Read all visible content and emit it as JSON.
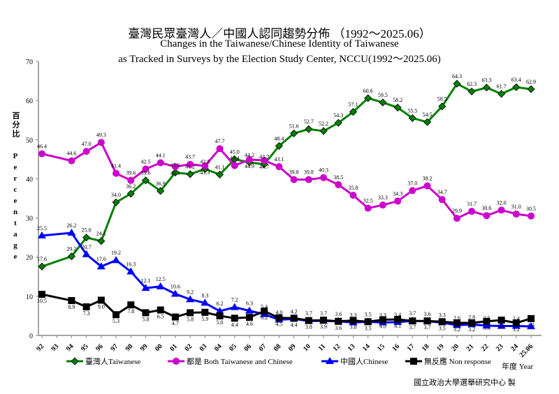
{
  "chart_data": {
    "type": "line",
    "title": "臺灣民眾臺灣人／中國人認同趨勢分佈 （1992～2025.06）",
    "subtitle_line1": "Changes in the Taiwanese/Chinese Identity of Taiwanese",
    "subtitle_line2": "as Tracked in Surveys by the Election Study Center, NCCU(1992～2025.06)",
    "ylabel_zh": "百分比",
    "ylabel_en": "Percentage",
    "xlabel": "年度 Year",
    "credit": "國立政治大學選舉研究中心 製",
    "ylim": [
      0,
      70
    ],
    "yticks": [
      0,
      10,
      20,
      30,
      40,
      50,
      60,
      70
    ],
    "grid": false,
    "legend_placement": "bottom",
    "categories": [
      "92",
      "93",
      "94",
      "95",
      "96",
      "97",
      "98",
      "99",
      "00",
      "01",
      "02",
      "03",
      "04",
      "05",
      "06",
      "07",
      "08",
      "09",
      "10",
      "11",
      "12",
      "13",
      "14",
      "15",
      "16",
      "17",
      "18",
      "19",
      "20",
      "21",
      "22",
      "23",
      "24",
      "25.06"
    ],
    "series": [
      {
        "name": "臺灣人Taiwanese",
        "color": "#008000",
        "marker": "diamond",
        "values": [
          17.6,
          null,
          20.2,
          25.0,
          24.1,
          34.0,
          36.2,
          39.6,
          36.9,
          41.6,
          41.2,
          42.5,
          41.1,
          45.0,
          44.2,
          43.7,
          48.4,
          51.6,
          52.7,
          52.2,
          54.3,
          57.1,
          60.6,
          59.5,
          58.2,
          55.5,
          54.5,
          58.5,
          64.3,
          62.3,
          63.3,
          61.7,
          63.4,
          62.9
        ]
      },
      {
        "name": "都是 Both Taiwanese and Chinese",
        "color": "#cc00cc",
        "marker": "circle",
        "values": [
          46.4,
          null,
          44.6,
          47.0,
          49.3,
          41.4,
          39.6,
          42.5,
          44.1,
          43.1,
          43.7,
          43.3,
          47.7,
          43.4,
          44.9,
          44.7,
          43.1,
          39.8,
          39.8,
          40.3,
          38.5,
          35.8,
          32.5,
          33.3,
          34.3,
          37.0,
          38.2,
          34.7,
          29.9,
          31.7,
          30.6,
          32.0,
          31.0,
          30.5
        ]
      },
      {
        "name": "中國人Chinese",
        "color": "#0000ff",
        "marker": "triangle",
        "values": [
          25.5,
          null,
          26.2,
          20.7,
          17.6,
          19.2,
          16.3,
          12.1,
          12.5,
          10.6,
          9.2,
          8.3,
          6.2,
          7.2,
          6.3,
          5.4,
          4.0,
          4.2,
          3.7,
          3.7,
          3.6,
          3.3,
          3.5,
          3.3,
          3.4,
          3.7,
          3.6,
          3.3,
          2.6,
          2.8,
          2.5,
          2.4,
          2.4,
          2.3
        ]
      },
      {
        "name": "無反應 Non response",
        "color": "#000000",
        "marker": "square",
        "values": [
          10.5,
          null,
          8.9,
          7.3,
          9.0,
          5.3,
          7.8,
          5.8,
          6.5,
          4.7,
          5.8,
          5.9,
          5.0,
          4.4,
          4.6,
          6.2,
          4.5,
          4.4,
          3.8,
          3.9,
          3.6,
          3.8,
          3.5,
          4.0,
          4.1,
          3.7,
          3.7,
          3.5,
          3.2,
          3.2,
          3.6,
          3.9,
          3.2,
          4.3
        ]
      }
    ]
  }
}
